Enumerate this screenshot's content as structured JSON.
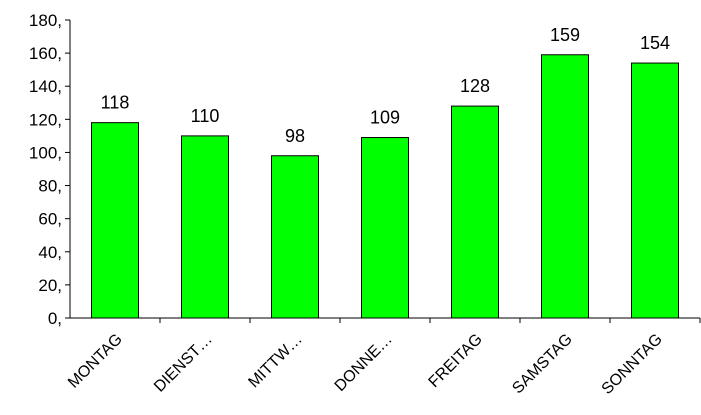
{
  "chart_data": {
    "type": "bar",
    "categories": [
      "MONTAG",
      "DIENST…",
      "MITTW…",
      "DONNE…",
      "FREITAG",
      "SAMSTAG",
      "SONNTAG"
    ],
    "values": [
      118,
      110,
      98,
      109,
      128,
      159,
      154
    ],
    "data_labels": [
      "118",
      "110",
      "98",
      "109",
      "128",
      "159",
      "154"
    ],
    "y_tick_labels": [
      "0,",
      "20,",
      "40,",
      "60,",
      "80,",
      "100,",
      "120,",
      "140,",
      "160,",
      "180,"
    ],
    "ylim": [
      0,
      180
    ],
    "ystep": 20,
    "grid": false,
    "legend": "none",
    "title": "",
    "xlabel": "",
    "ylabel": "",
    "colors": {
      "bar": "#00ff00",
      "bar_stroke": "#000000",
      "axis": "#000000"
    }
  }
}
